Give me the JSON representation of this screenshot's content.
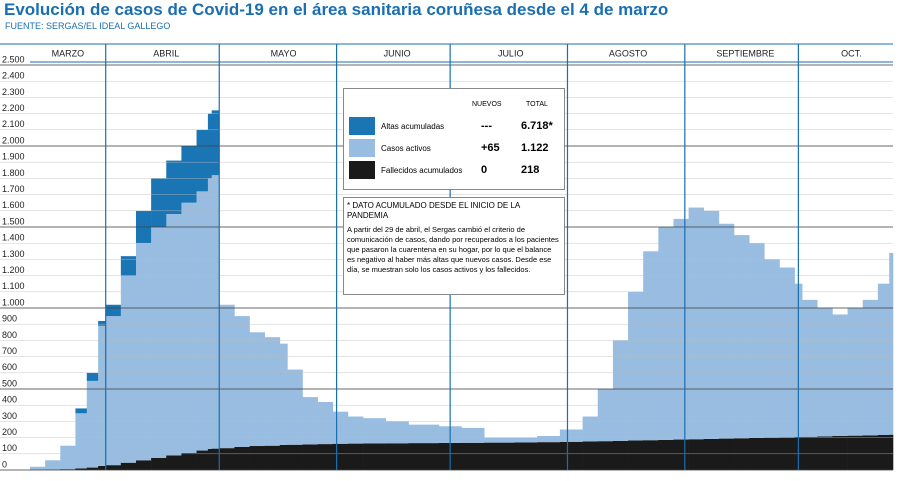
{
  "chart_data": {
    "type": "stacked-bar",
    "title": "Evolución de casos de Covid-19 en el área sanitaria coruñesa desde el 4 de marzo",
    "subtitle": "FUENTE: SERGAS/EL IDEAL GALLEGO",
    "x": [
      12,
      16,
      20,
      24,
      27,
      30,
      32,
      36,
      40,
      44,
      48,
      52,
      56,
      59,
      60,
      62,
      66,
      70,
      74,
      78,
      80,
      84,
      88,
      92,
      96,
      100,
      106,
      112,
      120,
      126,
      132,
      140,
      146,
      152,
      158,
      162,
      166,
      170,
      174,
      178,
      182,
      186,
      190,
      194,
      198,
      202,
      206,
      210,
      214,
      216,
      220,
      224,
      228,
      232,
      236,
      239
    ],
    "xlim": [
      12,
      240
    ],
    "xticks": [
      {
        "value": 22,
        "label": "MARZO"
      },
      {
        "value": 48,
        "label": "ABRIL"
      },
      {
        "value": 79,
        "label": "MAYO"
      },
      {
        "value": 109,
        "label": "JUNIO"
      },
      {
        "value": 139,
        "label": "JULIO"
      },
      {
        "value": 170,
        "label": "AGOSTO"
      },
      {
        "value": 201,
        "label": "SEPTIEMBRE"
      },
      {
        "value": 229,
        "label": "OCT."
      }
    ],
    "xgrid": [
      32,
      62,
      93,
      123,
      154,
      185,
      215
    ],
    "ylim": [
      0,
      2500
    ],
    "yticks": [
      0,
      100,
      200,
      300,
      400,
      500,
      600,
      700,
      800,
      900,
      {
        "value": 1000,
        "label": "1.000"
      },
      {
        "value": 1100,
        "label": "1.100"
      },
      {
        "value": 1200,
        "label": "1.200"
      },
      {
        "value": 1300,
        "label": "1.300"
      },
      {
        "value": 1400,
        "label": "1.400"
      },
      {
        "value": 1500,
        "label": "1.500"
      },
      {
        "value": 1600,
        "label": "1.600"
      },
      {
        "value": 1700,
        "label": "1.700"
      },
      {
        "value": 1800,
        "label": "1.800"
      },
      {
        "value": 1900,
        "label": "1.900"
      },
      {
        "value": 2000,
        "label": "2.000"
      },
      {
        "value": 2100,
        "label": "2.100"
      },
      {
        "value": 2200,
        "label": "2.200"
      },
      {
        "value": 2300,
        "label": "2.300"
      },
      {
        "value": 2400,
        "label": "2.400"
      },
      {
        "value": 2500,
        "label": "2.500"
      }
    ],
    "grid": true,
    "series": [
      {
        "name": "Fallecidos acumulados",
        "color": "#1a1a1a",
        "values": [
          0,
          2,
          5,
          10,
          15,
          25,
          30,
          45,
          60,
          75,
          90,
          105,
          120,
          130,
          132,
          135,
          142,
          148,
          150,
          155,
          156,
          158,
          160,
          162,
          163,
          164,
          165,
          166,
          167,
          168,
          169,
          170,
          172,
          174,
          176,
          178,
          180,
          182,
          184,
          186,
          188,
          190,
          192,
          194,
          196,
          198,
          200,
          202,
          204,
          205,
          207,
          210,
          212,
          214,
          216,
          218
        ]
      },
      {
        "name": "Casos activos",
        "color": "#98bde0",
        "values": [
          20,
          58,
          145,
          340,
          535,
          865,
          920,
          1155,
          1340,
          1425,
          1490,
          1545,
          1600,
          1670,
          1688,
          885,
          808,
          702,
          670,
          625,
          464,
          292,
          260,
          198,
          167,
          156,
          135,
          114,
          103,
          92,
          31,
          30,
          38,
          76,
          154,
          322,
          620,
          918,
          1166,
          1314,
          1362,
          1430,
          1408,
          1326,
          1254,
          1202,
          1100,
          1048,
          946,
          845,
          793,
          750,
          788,
          836,
          934,
          1122
        ]
      },
      {
        "name": "Altas acumuladas",
        "color": "#1a75b5",
        "values": [
          0,
          0,
          0,
          30,
          50,
          30,
          70,
          120,
          200,
          300,
          330,
          350,
          380,
          400,
          400,
          0,
          0,
          0,
          0,
          0,
          0,
          0,
          0,
          0,
          0,
          0,
          0,
          0,
          0,
          0,
          0,
          0,
          0,
          0,
          0,
          0,
          0,
          0,
          0,
          0,
          0,
          0,
          0,
          0,
          0,
          0,
          0,
          0,
          0,
          0,
          0,
          0,
          0,
          0,
          0,
          0
        ]
      }
    ],
    "legend": {
      "headers": [
        "NUEVOS",
        "TOTAL"
      ],
      "rows": [
        {
          "series": 2,
          "nuevos": "---",
          "total": "6.718*"
        },
        {
          "series": 1,
          "nuevos": "+65",
          "total": "1.122"
        },
        {
          "series": 0,
          "nuevos": "0",
          "total": "218"
        }
      ]
    },
    "note": {
      "title": "* DATO ACUMULADO DESDE EL INICIO DE LA PANDEMIA",
      "text": "A partir del 29 de abril, el Sergas cambió el criterio de comunicación de casos, dando por recuperados a los pacientes que pasaron la cuarentena en su hogar, por lo que el balance es negativo al haber más altas que nuevos casos. Desde ese día, se muestran solo los casos activos y los fallecidos."
    }
  }
}
